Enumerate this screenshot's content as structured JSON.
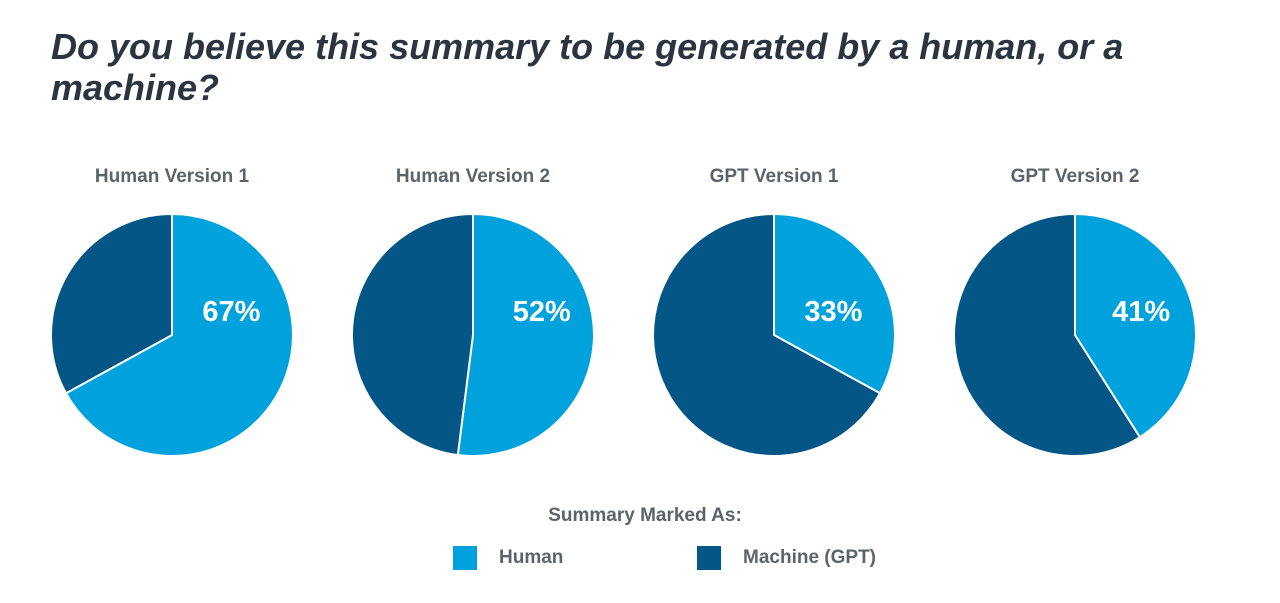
{
  "title": "Do you believe this summary to be generated by a human, or a machine?",
  "colors": {
    "human": "#00a2dd",
    "machine": "#035685",
    "text": "#5b636b",
    "title": "#2b3540"
  },
  "legend": {
    "title": "Summary Marked As:",
    "items": [
      {
        "label": "Human",
        "color": "#00a2dd"
      },
      {
        "label": "Machine (GPT)",
        "color": "#035685"
      }
    ]
  },
  "chart_data": [
    {
      "type": "pie",
      "title": "Human Version 1",
      "slices": [
        {
          "name": "Human",
          "value": 67,
          "label": "67%",
          "color": "#00a2dd"
        },
        {
          "name": "Machine (GPT)",
          "value": 33,
          "label": "",
          "color": "#035685"
        }
      ]
    },
    {
      "type": "pie",
      "title": "Human Version 2",
      "slices": [
        {
          "name": "Human",
          "value": 52,
          "label": "52%",
          "color": "#00a2dd"
        },
        {
          "name": "Machine (GPT)",
          "value": 48,
          "label": "",
          "color": "#035685"
        }
      ]
    },
    {
      "type": "pie",
      "title": "GPT Version 1",
      "slices": [
        {
          "name": "Human",
          "value": 33,
          "label": "33%",
          "color": "#00a2dd"
        },
        {
          "name": "Machine (GPT)",
          "value": 67,
          "label": "",
          "color": "#035685"
        }
      ]
    },
    {
      "type": "pie",
      "title": "GPT Version 2",
      "slices": [
        {
          "name": "Human",
          "value": 41,
          "label": "41%",
          "color": "#00a2dd"
        },
        {
          "name": "Machine (GPT)",
          "value": 59,
          "label": "",
          "color": "#035685"
        }
      ]
    }
  ]
}
